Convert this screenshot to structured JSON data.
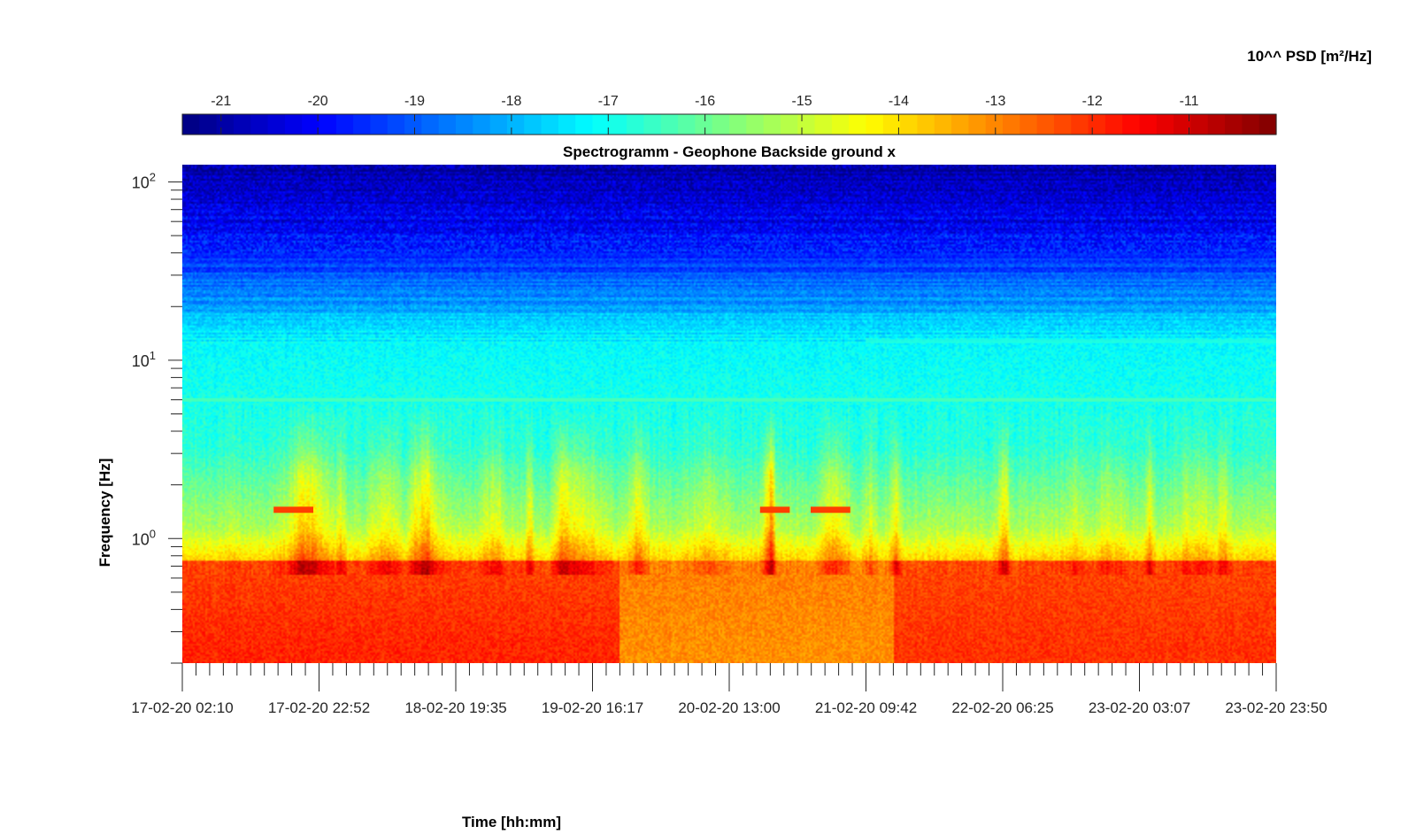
{
  "chart_data": {
    "type": "heatmap",
    "title": "Spectrogramm - Geophone Backside ground x",
    "xlabel": "Time [hh:mm]",
    "ylabel": "Frequency [Hz]",
    "yscale": "log",
    "ylim": [
      0.2,
      125
    ],
    "x_ticks": [
      "17-02-20 02:10",
      "17-02-20 22:52",
      "18-02-20 19:35",
      "19-02-20 16:17",
      "20-02-20 13:00",
      "21-02-20 09:42",
      "22-02-20 06:25",
      "23-02-20 03:07",
      "23-02-20 23:50"
    ],
    "y_ticks": [
      {
        "base": "10",
        "exp": "0",
        "value": 1
      },
      {
        "base": "10",
        "exp": "1",
        "value": 10
      },
      {
        "base": "10",
        "exp": "2",
        "value": 100
      }
    ],
    "colorbar": {
      "label": "10^^ PSD [m²/Hz]",
      "colormap": "jet",
      "range": [
        -21.4,
        -10.1
      ],
      "ticks": [
        "-21",
        "-20",
        "-19",
        "-18",
        "-17",
        "-16",
        "-15",
        "-14",
        "-13",
        "-12",
        "-11"
      ],
      "tick_values": [
        -21,
        -20,
        -19,
        -18,
        -17,
        -16,
        -15,
        -14,
        -13,
        -12,
        -11
      ]
    },
    "features": [
      {
        "kind": "band",
        "freq_hz": 6.0,
        "level": -16.3,
        "time_start": "17-02-20 02:10",
        "time_end": "23-02-20 23:50"
      },
      {
        "kind": "band",
        "freq_hz": 12.8,
        "level": -16.8,
        "time_start": "21-02-20 09:42",
        "time_end": "23-02-20 23:50"
      },
      {
        "kind": "segment",
        "freq_hz": 1.45,
        "level": -12.2,
        "time_start": "17-02-20 16:00",
        "time_end": "17-02-20 22:00"
      },
      {
        "kind": "segment",
        "freq_hz": 1.45,
        "level": -12.2,
        "time_start": "20-02-20 17:40",
        "time_end": "20-02-20 22:10"
      },
      {
        "kind": "segment",
        "freq_hz": 1.45,
        "level": -12.2,
        "time_start": "21-02-20 01:20",
        "time_end": "21-02-20 07:20"
      }
    ],
    "grid": false
  }
}
